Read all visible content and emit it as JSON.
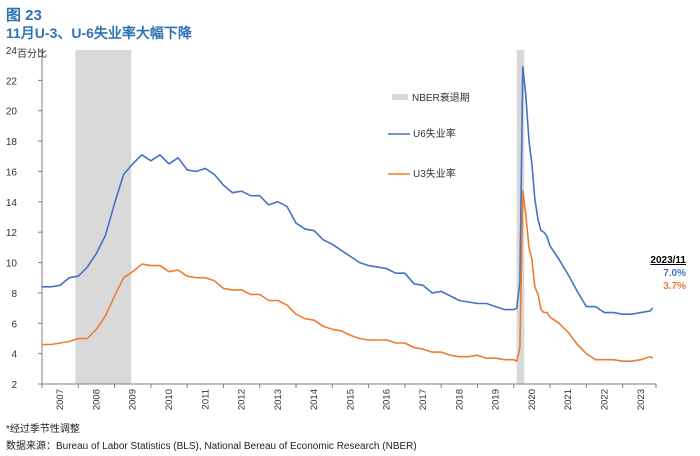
{
  "figure": {
    "label": "图 23",
    "title": "11月U-3、U-6失业率大幅下降",
    "note": "*经过季节性调整",
    "source": "数据来源：Bureau of Labor Statistics (BLS), National Bereau of Economic Research (NBER)"
  },
  "chart_data": {
    "type": "line",
    "ylabel": "百分比",
    "ylim": [
      2,
      24
    ],
    "yticks": [
      "2",
      "4",
      "6",
      "8",
      "10",
      "12",
      "14",
      "16",
      "18",
      "20",
      "22",
      "24"
    ],
    "xlim": [
      2007.0,
      2023.92
    ],
    "xticks": [
      "2007",
      "2008",
      "2009",
      "2010",
      "2011",
      "2012",
      "2013",
      "2014",
      "2015",
      "2016",
      "2017",
      "2018",
      "2019",
      "2020",
      "2021",
      "2022",
      "2023"
    ],
    "grid": false,
    "legend_position": "right",
    "colors": {
      "u6": "#4472c4",
      "u3": "#ed7d31",
      "recession": "#d9d9d9"
    },
    "recessions": [
      {
        "name": "NBER衰退期",
        "start": 2007.92,
        "end": 2009.46
      },
      {
        "name": "NBER衰退期",
        "start": 2020.08,
        "end": 2020.29
      }
    ],
    "series": [
      {
        "name": "U6失业率",
        "key": "u6",
        "x": [
          2007.0,
          2007.25,
          2007.5,
          2007.75,
          2008.0,
          2008.25,
          2008.5,
          2008.75,
          2009.0,
          2009.25,
          2009.5,
          2009.75,
          2010.0,
          2010.25,
          2010.5,
          2010.75,
          2011.0,
          2011.25,
          2011.5,
          2011.75,
          2012.0,
          2012.25,
          2012.5,
          2012.75,
          2013.0,
          2013.25,
          2013.5,
          2013.75,
          2014.0,
          2014.25,
          2014.5,
          2014.75,
          2015.0,
          2015.25,
          2015.5,
          2015.75,
          2016.0,
          2016.25,
          2016.5,
          2016.75,
          2017.0,
          2017.25,
          2017.5,
          2017.75,
          2018.0,
          2018.25,
          2018.5,
          2018.75,
          2019.0,
          2019.25,
          2019.5,
          2019.75,
          2020.0,
          2020.08,
          2020.17,
          2020.25,
          2020.33,
          2020.42,
          2020.5,
          2020.58,
          2020.67,
          2020.75,
          2020.83,
          2020.92,
          2021.0,
          2021.25,
          2021.5,
          2021.75,
          2022.0,
          2022.25,
          2022.5,
          2022.75,
          2023.0,
          2023.25,
          2023.5,
          2023.75,
          2023.83
        ],
        "values": [
          8.4,
          8.4,
          8.5,
          9.0,
          9.1,
          9.7,
          10.6,
          11.8,
          13.9,
          15.8,
          16.5,
          17.1,
          16.7,
          17.1,
          16.5,
          16.9,
          16.1,
          16.0,
          16.2,
          15.8,
          15.1,
          14.6,
          14.7,
          14.4,
          14.4,
          13.8,
          14.0,
          13.7,
          12.6,
          12.2,
          12.1,
          11.5,
          11.2,
          10.8,
          10.4,
          10.0,
          9.8,
          9.7,
          9.6,
          9.3,
          9.3,
          8.6,
          8.5,
          8.0,
          8.1,
          7.8,
          7.5,
          7.4,
          7.3,
          7.3,
          7.1,
          6.9,
          6.9,
          7.0,
          8.7,
          22.9,
          21.1,
          18.0,
          16.5,
          14.2,
          12.8,
          12.1,
          12.0,
          11.7,
          11.1,
          10.2,
          9.2,
          8.1,
          7.1,
          7.1,
          6.7,
          6.7,
          6.6,
          6.6,
          6.7,
          6.8,
          7.0
        ]
      },
      {
        "name": "U3失业率",
        "key": "u3",
        "x": [
          2007.0,
          2007.25,
          2007.5,
          2007.75,
          2008.0,
          2008.25,
          2008.5,
          2008.75,
          2009.0,
          2009.25,
          2009.5,
          2009.75,
          2010.0,
          2010.25,
          2010.5,
          2010.75,
          2011.0,
          2011.25,
          2011.5,
          2011.75,
          2012.0,
          2012.25,
          2012.5,
          2012.75,
          2013.0,
          2013.25,
          2013.5,
          2013.75,
          2014.0,
          2014.25,
          2014.5,
          2014.75,
          2015.0,
          2015.25,
          2015.5,
          2015.75,
          2016.0,
          2016.25,
          2016.5,
          2016.75,
          2017.0,
          2017.25,
          2017.5,
          2017.75,
          2018.0,
          2018.25,
          2018.5,
          2018.75,
          2019.0,
          2019.25,
          2019.5,
          2019.75,
          2020.0,
          2020.08,
          2020.17,
          2020.25,
          2020.33,
          2020.42,
          2020.5,
          2020.58,
          2020.67,
          2020.75,
          2020.83,
          2020.92,
          2021.0,
          2021.25,
          2021.5,
          2021.75,
          2022.0,
          2022.25,
          2022.5,
          2022.75,
          2023.0,
          2023.25,
          2023.5,
          2023.75,
          2023.83
        ],
        "values": [
          4.6,
          4.6,
          4.7,
          4.8,
          5.0,
          5.0,
          5.6,
          6.5,
          7.8,
          9.0,
          9.4,
          9.9,
          9.8,
          9.8,
          9.4,
          9.5,
          9.1,
          9.0,
          9.0,
          8.8,
          8.3,
          8.2,
          8.2,
          7.9,
          7.9,
          7.5,
          7.5,
          7.2,
          6.6,
          6.3,
          6.2,
          5.8,
          5.6,
          5.5,
          5.2,
          5.0,
          4.9,
          4.9,
          4.9,
          4.7,
          4.7,
          4.4,
          4.3,
          4.1,
          4.1,
          3.9,
          3.8,
          3.8,
          3.9,
          3.7,
          3.7,
          3.6,
          3.6,
          3.5,
          4.4,
          14.7,
          13.2,
          11.0,
          10.2,
          8.4,
          7.9,
          6.9,
          6.7,
          6.7,
          6.4,
          6.0,
          5.4,
          4.6,
          4.0,
          3.6,
          3.6,
          3.6,
          3.5,
          3.5,
          3.6,
          3.8,
          3.7
        ]
      }
    ],
    "annotation": {
      "date": "2023/11",
      "u6": "7.0%",
      "u3": "3.7%"
    }
  }
}
